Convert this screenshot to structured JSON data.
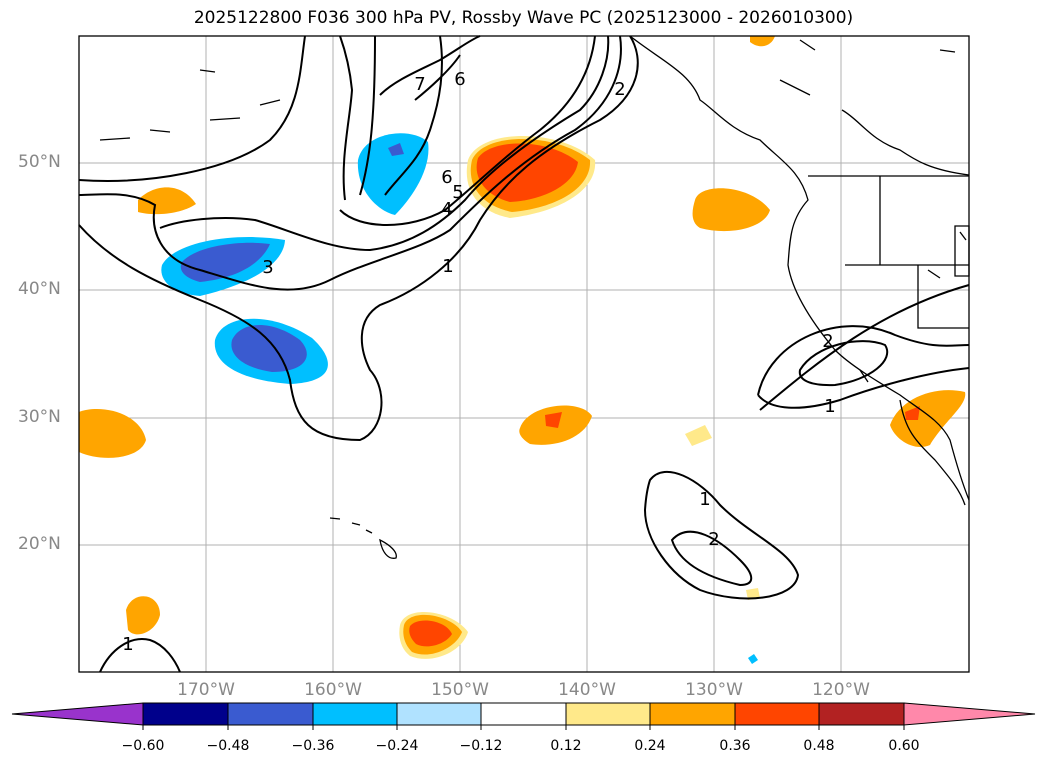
{
  "title": "2025122800 F036 300 hPa PV, Rossby Wave PC (2025123000 - 2026010300)",
  "map": {
    "lat_labels": [
      "50°N",
      "40°N",
      "30°N",
      "20°N"
    ],
    "lon_labels": [
      "170°W",
      "160°W",
      "150°W",
      "140°W",
      "130°W",
      "120°W"
    ],
    "contour_labels": [
      "7",
      "6",
      "6",
      "5",
      "4",
      "3",
      "2",
      "1",
      "2",
      "1",
      "1",
      "2",
      "1"
    ]
  },
  "colorbar": {
    "ticks": [
      "−0.60",
      "−0.48",
      "−0.36",
      "−0.24",
      "−0.12",
      "0.12",
      "0.24",
      "0.36",
      "0.48",
      "0.60"
    ],
    "colors": [
      "#9933cc",
      "#00008b",
      "#3a5bd0",
      "#00bfff",
      "#b0e2ff",
      "#ffffff",
      "#ffe98a",
      "#ffa500",
      "#ff4500",
      "#b22222",
      "#ff88aa"
    ]
  },
  "colors": {
    "grid": "#b0b0b0",
    "contour": "#000000",
    "tick_label": "#888888"
  }
}
